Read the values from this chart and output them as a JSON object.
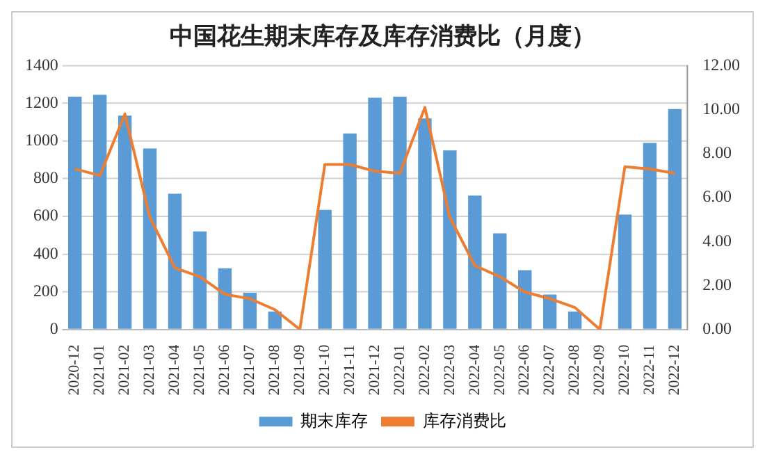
{
  "chart_data": {
    "type": "bar",
    "title": "中国花生期末库存及库存消费比（月度）",
    "categories": [
      "2020-12",
      "2021-01",
      "2021-02",
      "2021-03",
      "2021-04",
      "2021-05",
      "2021-06",
      "2021-07",
      "2021-08",
      "2021-09",
      "2021-10",
      "2021-11",
      "2021-12",
      "2022-01",
      "2022-02",
      "2022-03",
      "2022-04",
      "2022-05",
      "2022-06",
      "2022-07",
      "2022-08",
      "2022-09",
      "2022-10",
      "2022-11",
      "2022-12"
    ],
    "series": [
      {
        "name": "期末库存",
        "color": "#5b9bd5",
        "values": [
          1235,
          1245,
          1135,
          960,
          720,
          520,
          325,
          195,
          95,
          0,
          635,
          1040,
          1230,
          1235,
          1120,
          950,
          710,
          510,
          315,
          185,
          95,
          0,
          610,
          990,
          1170
        ]
      },
      {
        "name": "库存消费比",
        "type": "line",
        "axis": "y2",
        "color": "#ed7d31",
        "values": [
          7.3,
          7.0,
          9.8,
          5.1,
          2.8,
          2.4,
          1.6,
          1.4,
          0.9,
          0,
          7.5,
          7.5,
          7.2,
          7.1,
          10.1,
          5.1,
          2.9,
          2.4,
          1.7,
          1.4,
          1.0,
          0,
          7.4,
          7.3,
          7.1
        ]
      }
    ],
    "ylim": [
      0,
      1400
    ],
    "yticks": [
      0,
      200,
      400,
      600,
      800,
      1000,
      1200,
      1400
    ],
    "y2lim": [
      0,
      12
    ],
    "y2ticks": [
      {
        "value": 0,
        "label": "0.00"
      },
      {
        "value": 2,
        "label": "2.00"
      },
      {
        "value": 4,
        "label": "4.00"
      },
      {
        "value": 6,
        "label": "6.00"
      },
      {
        "value": 8,
        "label": "8.00"
      },
      {
        "value": 10,
        "label": "10.00"
      },
      {
        "value": 12,
        "label": "12.00"
      }
    ],
    "grid": "y",
    "legend": "bottom",
    "marker": "none"
  }
}
